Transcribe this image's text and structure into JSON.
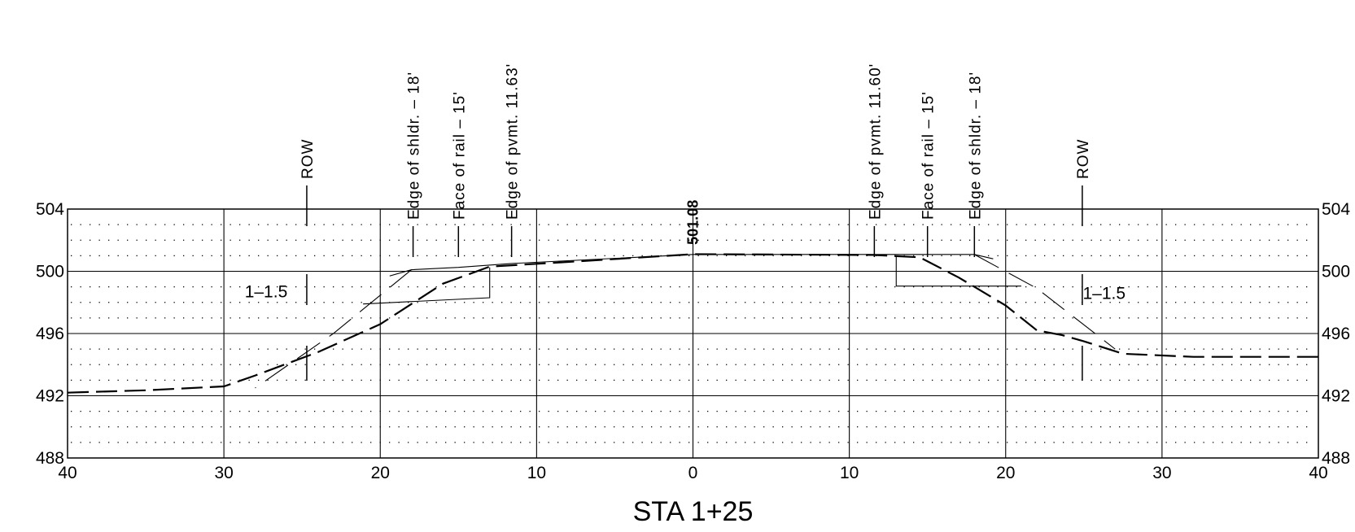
{
  "drawing": {
    "title": "STA 1+25",
    "x_axis": {
      "min": -40,
      "max": 40,
      "ticks": [
        -40,
        -30,
        -20,
        -10,
        0,
        10,
        20,
        30,
        40
      ],
      "tick_labels": [
        "40",
        "30",
        "20",
        "10",
        "0",
        "10",
        "20",
        "30",
        "40"
      ]
    },
    "y_axis": {
      "min": 488,
      "max": 504,
      "ticks": [
        488,
        492,
        496,
        500,
        504
      ],
      "tick_labels": [
        "488",
        "492",
        "496",
        "500",
        "504"
      ]
    },
    "grid": {
      "major_x_step": 10,
      "major_y_step": 4,
      "minor_dots": true
    },
    "centerline_elevation": {
      "label": "501.08",
      "x": 0,
      "y": 501.08
    },
    "annotations": [
      {
        "label": "ROW",
        "x": -24.7
      },
      {
        "label": "Edge of shldr. – 18'",
        "x": -17.9
      },
      {
        "label": "Face of rail – 15'",
        "x": -15.0
      },
      {
        "label": "Edge of pvmt. 11.63'",
        "x": -11.6
      },
      {
        "label": "Edge of pvmt. 11.60'",
        "x": 11.6
      },
      {
        "label": "Face of rail – 15'",
        "x": 15.0
      },
      {
        "label": "Edge of shldr. – 18'",
        "x": 18.0
      },
      {
        "label": "ROW",
        "x": 24.9
      }
    ],
    "slopes": [
      {
        "label": "1–1.5",
        "x": -27.3,
        "y": 498.7
      },
      {
        "label": "1–1.5",
        "x": 26.3,
        "y": 498.6
      }
    ],
    "existing_ground": [
      [
        -40,
        492.2
      ],
      [
        -35,
        492.35
      ],
      [
        -30,
        492.6
      ],
      [
        -28,
        493.3
      ],
      [
        -24,
        494.8
      ],
      [
        -20,
        496.6
      ],
      [
        -16,
        499.2
      ],
      [
        -13,
        500.3
      ],
      [
        -8,
        500.6
      ],
      [
        0,
        501.1
      ],
      [
        11.5,
        501.05
      ],
      [
        14.5,
        500.9
      ],
      [
        17,
        499.6
      ],
      [
        20,
        497.8
      ],
      [
        22,
        496.2
      ],
      [
        23.6,
        495.9
      ],
      [
        25,
        495.5
      ],
      [
        27.5,
        494.7
      ],
      [
        32,
        494.5
      ],
      [
        40,
        494.5
      ]
    ],
    "proposed_section": [
      [
        [
          -19.4,
          499.7
        ],
        [
          -18.0,
          500.1
        ],
        [
          -15.0,
          500.25
        ],
        [
          -11.6,
          500.5
        ],
        [
          0,
          501.08
        ],
        [
          11.6,
          501.08
        ],
        [
          15,
          501.08
        ],
        [
          18,
          501.08
        ],
        [
          19.2,
          500.8
        ]
      ],
      [
        [
          -21.1,
          497.9
        ],
        [
          -13.0,
          498.3
        ],
        [
          -13.0,
          500.25
        ]
      ],
      [
        [
          13.0,
          501.0
        ],
        [
          13.0,
          499.05
        ],
        [
          21.0,
          499.05
        ]
      ],
      [
        [
          -18.0,
          500.1
        ],
        [
          -23.0,
          496.0
        ],
        [
          -28.0,
          492.5
        ]
      ],
      [
        [
          18.0,
          501.08
        ],
        [
          22.0,
          498.9
        ],
        [
          27.0,
          495.0
        ]
      ]
    ]
  }
}
